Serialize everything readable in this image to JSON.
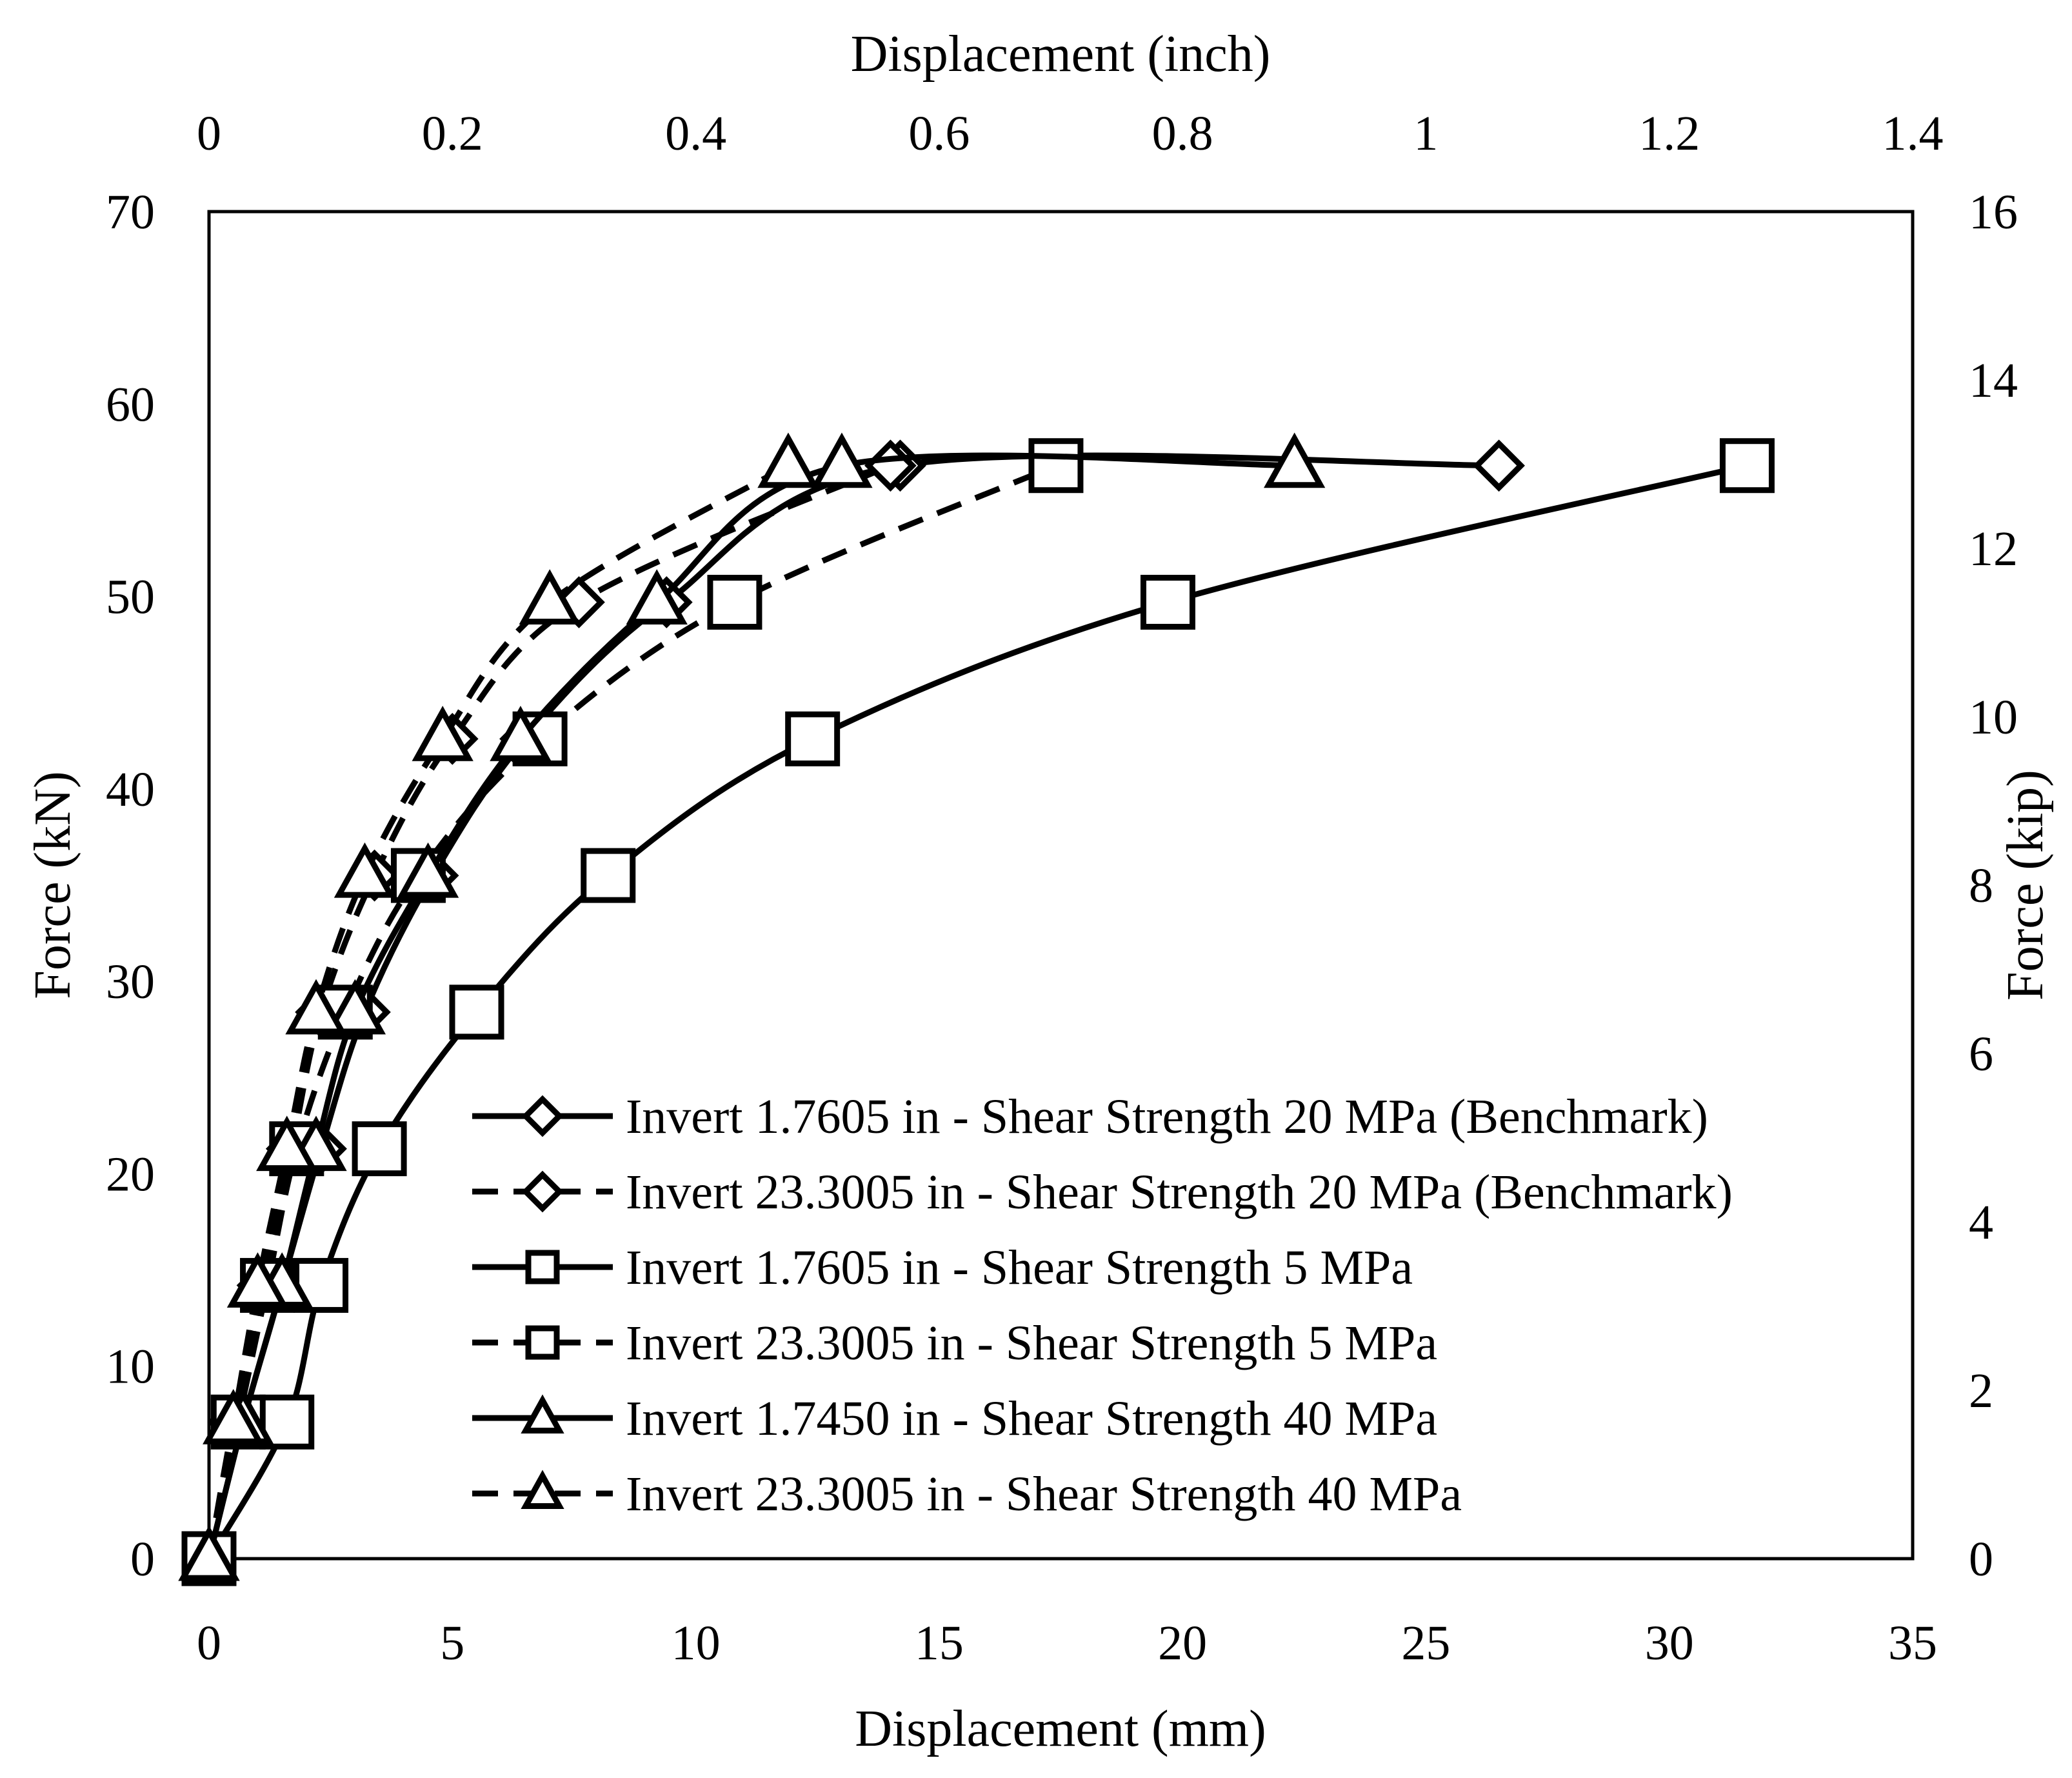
{
  "chart_data": {
    "type": "line",
    "x_bottom": {
      "label": "Displacement (mm)",
      "range": [
        0,
        35
      ],
      "ticks": [
        "0",
        "5",
        "10",
        "15",
        "20",
        "25",
        "30",
        "35"
      ]
    },
    "x_top": {
      "label": "Displacement (inch)",
      "range": [
        0,
        1.4
      ],
      "ticks": [
        "0",
        "0.2",
        "0.4",
        "0.6",
        "0.8",
        "1",
        "1.2",
        "1.4"
      ]
    },
    "y_left": {
      "label": "Force (kN)",
      "range": [
        0,
        70
      ],
      "ticks": [
        "0",
        "10",
        "20",
        "30",
        "40",
        "50",
        "60",
        "70"
      ]
    },
    "y_right": {
      "label": "Force (kip)",
      "range": [
        0,
        16
      ],
      "ticks": [
        "0",
        "2",
        "4",
        "6",
        "8",
        "10",
        "12",
        "14",
        "16"
      ]
    },
    "grid": false,
    "legend_position": "lower-right",
    "series": [
      {
        "name": "Invert 1.7605 in - Shear Strength 20 MPa (Benchmark)",
        "dash": "solid",
        "marker": "diamond",
        "x": [
          0,
          0.7,
          1.5,
          2.3,
          3.2,
          4.6,
          6.5,
          9.4,
          14.2,
          26.5
        ],
        "y": [
          0,
          7.1,
          14.2,
          21.3,
          28.4,
          35.5,
          42.6,
          49.7,
          56.8,
          56.8
        ]
      },
      {
        "name": "Invert 23.3005 in - Shear Strength 20 MPa (Benchmark)",
        "dash": "dashed",
        "marker": "diamond",
        "x": [
          0,
          0.5,
          1.1,
          1.7,
          2.3,
          3.4,
          5.0,
          7.6,
          14.0
        ],
        "y": [
          0,
          7.1,
          14.2,
          21.3,
          28.4,
          35.5,
          42.6,
          49.7,
          56.8
        ]
      },
      {
        "name": "Invert 1.7605 in - Shear Strength 5 MPa",
        "dash": "solid",
        "marker": "square",
        "x": [
          0,
          1.6,
          2.3,
          3.5,
          5.5,
          8.2,
          12.4,
          19.7,
          31.6
        ],
        "y": [
          0,
          7.1,
          14.2,
          21.3,
          28.4,
          35.5,
          42.6,
          49.7,
          56.8
        ]
      },
      {
        "name": "Invert 23.3005 in - Shear Strength 5 MPa",
        "dash": "dashed",
        "marker": "square",
        "x": [
          0,
          0.6,
          1.2,
          1.8,
          2.8,
          4.3,
          6.8,
          10.8,
          17.4
        ],
        "y": [
          0,
          7.1,
          14.2,
          21.3,
          28.4,
          35.5,
          42.6,
          49.7,
          56.8
        ]
      },
      {
        "name": "Invert 1.7450 in - Shear Strength 40 MPa",
        "dash": "solid",
        "marker": "triangle",
        "x": [
          0,
          0.7,
          1.5,
          2.2,
          3.0,
          4.5,
          6.4,
          9.2,
          13.0,
          22.3
        ],
        "y": [
          0,
          7.1,
          14.2,
          21.3,
          28.4,
          35.5,
          42.6,
          49.7,
          56.8,
          56.8
        ]
      },
      {
        "name": "Invert 23.3005 in - Shear Strength 40 MPa",
        "dash": "dashed",
        "marker": "triangle",
        "x": [
          0,
          0.5,
          1.0,
          1.6,
          2.2,
          3.2,
          4.8,
          7.0,
          11.9
        ],
        "y": [
          0,
          7.1,
          14.2,
          21.3,
          28.4,
          35.5,
          42.6,
          49.7,
          56.8
        ]
      }
    ]
  }
}
